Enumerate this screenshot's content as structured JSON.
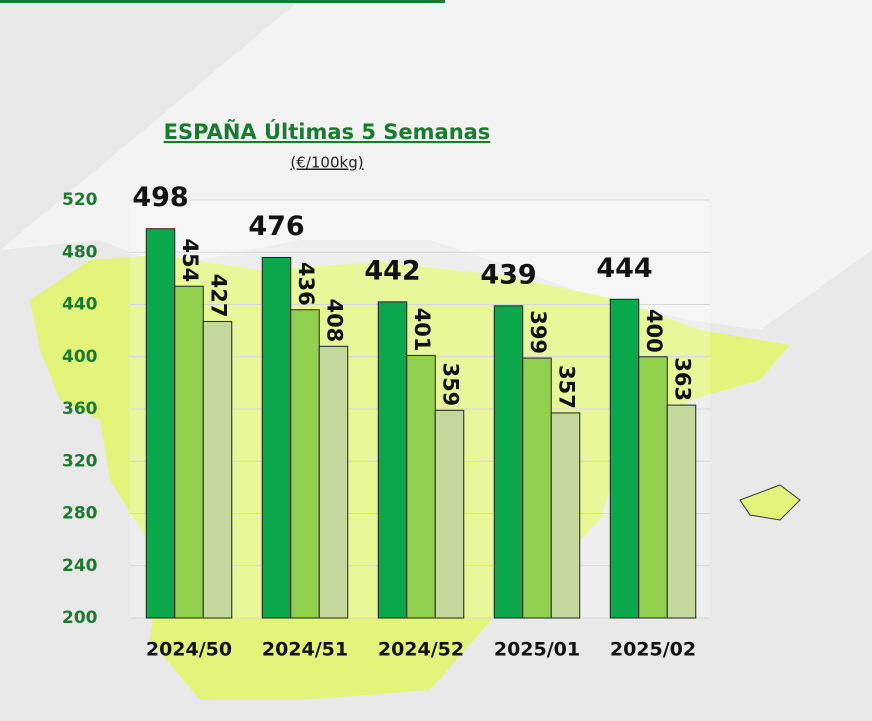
{
  "chart_data": {
    "type": "bar",
    "title": "ESPAÑA Últimas 5 Semanas",
    "subtitle": "(€/100kg)",
    "categories": [
      "2024/50",
      "2024/51",
      "2024/52",
      "2025/01",
      "2025/02"
    ],
    "series": [
      {
        "color": "#0aa84a",
        "values": [
          498,
          476,
          442,
          439,
          444
        ]
      },
      {
        "color": "#92d050",
        "values": [
          454,
          436,
          401,
          399,
          400
        ]
      },
      {
        "color": "#c4d89e",
        "values": [
          427,
          408,
          359,
          357,
          363
        ]
      }
    ],
    "ylim": [
      200,
      520
    ],
    "yticks": [
      200,
      240,
      280,
      320,
      360,
      400,
      440,
      480,
      520
    ],
    "grid": true
  }
}
